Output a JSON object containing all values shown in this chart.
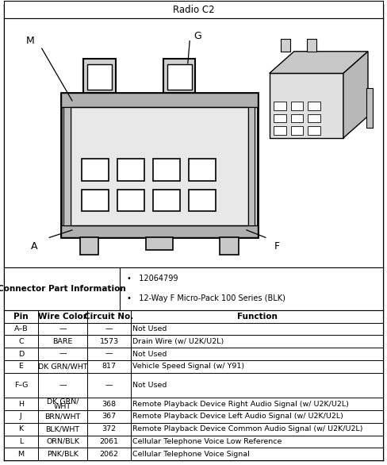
{
  "title": "Radio C2",
  "connector_info_title": "Connector Part Information",
  "connector_info_bullets": [
    "12064799",
    "12-Way F Micro-Pack 100 Series (BLK)"
  ],
  "table_headers": [
    "Pin",
    "Wire Color",
    "Circuit No.",
    "Function"
  ],
  "table_rows": [
    [
      "A–B",
      "—",
      "—",
      "Not Used"
    ],
    [
      "C",
      "BARE",
      "1573",
      "Drain Wire (w/ U2K/U2L)"
    ],
    [
      "D",
      "—",
      "—",
      "Not Used"
    ],
    [
      "E",
      "DK GRN/WHT",
      "817",
      "Vehicle Speed Signal (w/ Y91)"
    ],
    [
      "F–G",
      "—",
      "—",
      "Not Used"
    ],
    [
      "H",
      "DK GRN/\nWHT",
      "368",
      "Remote Playback Device Right Audio Signal (w/ U2K/U2L)"
    ],
    [
      "J",
      "BRN/WHT",
      "367",
      "Remote Playback Device Left Audio Signal (w/ U2K/U2L)"
    ],
    [
      "K",
      "BLK/WHT",
      "372",
      "Remote Playback Device Common Audio Signal (w/ U2K/U2L)"
    ],
    [
      "L",
      "ORN/BLK",
      "2061",
      "Cellular Telephone Voice Low Reference"
    ],
    [
      "M",
      "PNK/BLK",
      "2062",
      "Cellular Telephone Voice Signal"
    ]
  ],
  "col_bounds": [
    0.0,
    0.09,
    0.22,
    0.335,
    1.0
  ],
  "fig_width": 4.88,
  "fig_height": 5.86,
  "dpi": 100
}
